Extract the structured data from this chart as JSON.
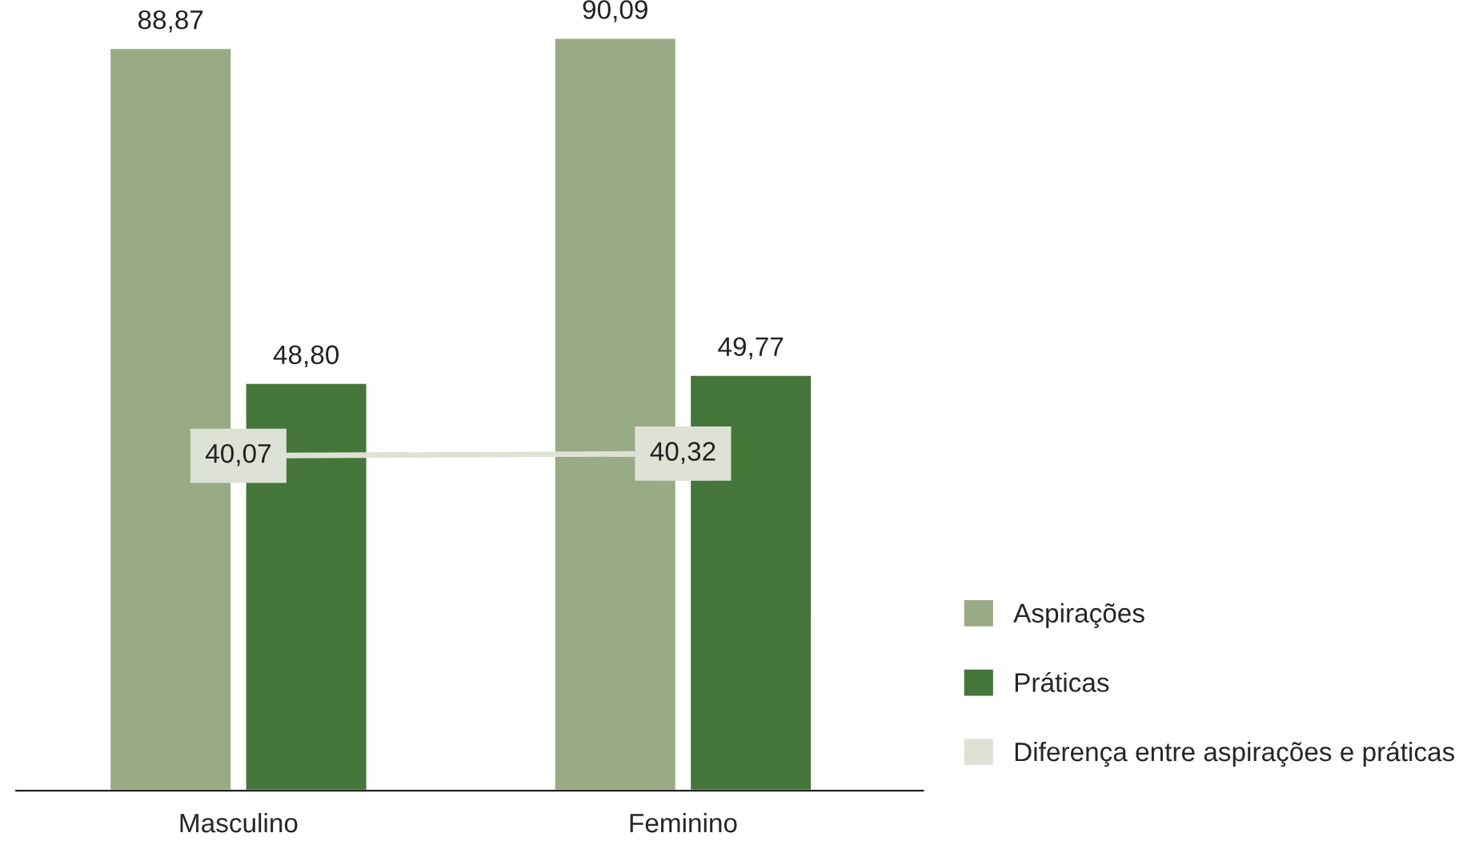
{
  "chart_data": {
    "type": "bar",
    "categories": [
      "Masculino",
      "Feminino"
    ],
    "series": [
      {
        "name": "Aspirações",
        "color": "#98ab85",
        "values": [
          88.87,
          90.09
        ],
        "value_labels": [
          "88,87",
          "90,09"
        ]
      },
      {
        "name": "Práticas",
        "color": "#44763a",
        "values": [
          48.8,
          49.77
        ],
        "value_labels": [
          "48,80",
          "49,77"
        ]
      },
      {
        "name": "Diferença entre aspirações e práticas",
        "color": "#dde2d5",
        "type": "line",
        "marker": "square",
        "values": [
          40.07,
          40.32
        ],
        "value_labels": [
          "40,07",
          "40,32"
        ]
      }
    ],
    "tick_labels": "x",
    "grid": false,
    "legend": "bottom right"
  }
}
